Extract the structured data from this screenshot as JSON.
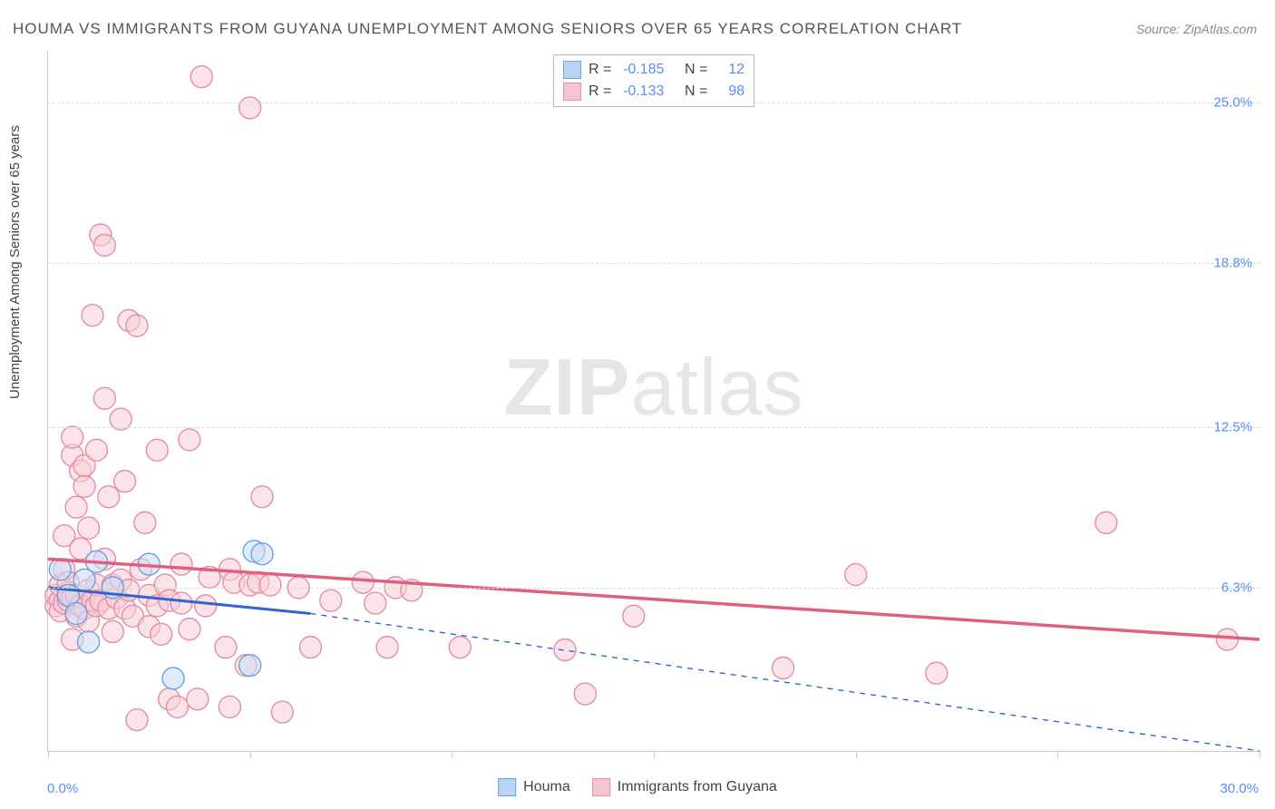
{
  "title": "HOUMA VS IMMIGRANTS FROM GUYANA UNEMPLOYMENT AMONG SENIORS OVER 65 YEARS CORRELATION CHART",
  "source": "Source: ZipAtlas.com",
  "ylabel": "Unemployment Among Seniors over 65 years",
  "watermark_a": "ZIP",
  "watermark_b": "atlas",
  "chart": {
    "type": "scatter",
    "xlim": [
      0,
      30
    ],
    "ylim": [
      0,
      27
    ],
    "x_axis_labels": {
      "left": "0.0%",
      "right": "30.0%"
    },
    "y_ticks": [
      {
        "value": 6.3,
        "label": "6.3%"
      },
      {
        "value": 12.5,
        "label": "12.5%"
      },
      {
        "value": 18.8,
        "label": "18.8%"
      },
      {
        "value": 25.0,
        "label": "25.0%"
      }
    ],
    "x_tick_positions": [
      0,
      5,
      10,
      15,
      20,
      25,
      30
    ],
    "grid_color": "#dddddd",
    "axis_color": "#cccccc",
    "background_color": "#ffffff",
    "marker_radius": 12,
    "marker_stroke_width": 1.4,
    "label_fontsize": 15,
    "tick_color": "#5b8def",
    "series": [
      {
        "name": "Houma",
        "fill": "#c9ddf6",
        "fill_opacity": 0.55,
        "stroke": "#6fa0e0",
        "swatch_fill": "#b9d4f2",
        "swatch_border": "#6fa0e0",
        "R": "-0.185",
        "N": "12",
        "trend": {
          "x1": 0,
          "y1": 6.3,
          "x2": 6.5,
          "y2": 5.3,
          "dash_x2": 30,
          "dash_y2": 0.0,
          "color": "#3366cc",
          "width": 3,
          "dash_width": 1.4
        },
        "points": [
          [
            0.3,
            7.0
          ],
          [
            0.5,
            6.0
          ],
          [
            0.7,
            5.3
          ],
          [
            0.9,
            6.6
          ],
          [
            1.0,
            4.2
          ],
          [
            1.2,
            7.3
          ],
          [
            1.6,
            6.3
          ],
          [
            2.5,
            7.2
          ],
          [
            3.1,
            2.8
          ],
          [
            5.0,
            3.3
          ],
          [
            5.1,
            7.7
          ],
          [
            5.3,
            7.6
          ]
        ]
      },
      {
        "name": "Immigrants from Guyana",
        "fill": "#f8cdd7",
        "fill_opacity": 0.55,
        "stroke": "#e38fa5",
        "swatch_fill": "#f6c5d1",
        "swatch_border": "#e38fa5",
        "R": "-0.133",
        "N": "98",
        "trend": {
          "x1": 0,
          "y1": 7.4,
          "x2": 30,
          "y2": 4.3,
          "color": "#e0607f",
          "width": 3.5
        },
        "points": [
          [
            0.2,
            5.6
          ],
          [
            0.2,
            6.0
          ],
          [
            0.3,
            5.8
          ],
          [
            0.3,
            6.4
          ],
          [
            0.3,
            5.4
          ],
          [
            0.4,
            7.0
          ],
          [
            0.4,
            5.7
          ],
          [
            0.4,
            8.3
          ],
          [
            0.5,
            5.8
          ],
          [
            0.5,
            6.1
          ],
          [
            0.5,
            6.5
          ],
          [
            0.6,
            5.9
          ],
          [
            0.6,
            4.3
          ],
          [
            0.6,
            11.4
          ],
          [
            0.6,
            12.1
          ],
          [
            0.7,
            5.2
          ],
          [
            0.7,
            9.4
          ],
          [
            0.7,
            6.0
          ],
          [
            0.8,
            10.8
          ],
          [
            0.8,
            5.6
          ],
          [
            0.8,
            7.8
          ],
          [
            0.9,
            5.5
          ],
          [
            0.9,
            11.0
          ],
          [
            0.9,
            10.2
          ],
          [
            1.0,
            6.2
          ],
          [
            1.0,
            5.0
          ],
          [
            1.0,
            8.6
          ],
          [
            1.1,
            5.8
          ],
          [
            1.1,
            16.8
          ],
          [
            1.2,
            11.6
          ],
          [
            1.2,
            5.6
          ],
          [
            1.2,
            6.4
          ],
          [
            1.3,
            19.9
          ],
          [
            1.3,
            5.8
          ],
          [
            1.4,
            7.4
          ],
          [
            1.4,
            13.6
          ],
          [
            1.4,
            19.5
          ],
          [
            1.5,
            5.5
          ],
          [
            1.5,
            9.8
          ],
          [
            1.6,
            6.4
          ],
          [
            1.6,
            4.6
          ],
          [
            1.7,
            5.9
          ],
          [
            1.8,
            6.6
          ],
          [
            1.8,
            12.8
          ],
          [
            1.9,
            5.5
          ],
          [
            1.9,
            10.4
          ],
          [
            2.0,
            16.6
          ],
          [
            2.0,
            6.2
          ],
          [
            2.1,
            5.2
          ],
          [
            2.2,
            16.4
          ],
          [
            2.2,
            1.2
          ],
          [
            2.3,
            7.0
          ],
          [
            2.4,
            8.8
          ],
          [
            2.5,
            4.8
          ],
          [
            2.5,
            6.0
          ],
          [
            2.7,
            5.6
          ],
          [
            2.7,
            11.6
          ],
          [
            2.8,
            4.5
          ],
          [
            2.9,
            6.4
          ],
          [
            3.0,
            5.8
          ],
          [
            3.0,
            2.0
          ],
          [
            3.2,
            1.7
          ],
          [
            3.3,
            5.7
          ],
          [
            3.3,
            7.2
          ],
          [
            3.5,
            4.7
          ],
          [
            3.5,
            12.0
          ],
          [
            3.7,
            2.0
          ],
          [
            3.8,
            26.0
          ],
          [
            3.9,
            5.6
          ],
          [
            4.0,
            6.7
          ],
          [
            4.4,
            4.0
          ],
          [
            4.5,
            7.0
          ],
          [
            4.5,
            1.7
          ],
          [
            4.6,
            6.5
          ],
          [
            4.9,
            3.3
          ],
          [
            5.0,
            24.8
          ],
          [
            5.0,
            6.4
          ],
          [
            5.2,
            6.5
          ],
          [
            5.3,
            9.8
          ],
          [
            5.5,
            6.4
          ],
          [
            5.8,
            1.5
          ],
          [
            6.2,
            6.3
          ],
          [
            6.5,
            4.0
          ],
          [
            7.0,
            5.8
          ],
          [
            7.8,
            6.5
          ],
          [
            8.1,
            5.7
          ],
          [
            8.4,
            4.0
          ],
          [
            8.6,
            6.3
          ],
          [
            9.0,
            6.2
          ],
          [
            10.2,
            4.0
          ],
          [
            12.8,
            3.9
          ],
          [
            13.3,
            2.2
          ],
          [
            14.5,
            5.2
          ],
          [
            18.2,
            3.2
          ],
          [
            20.0,
            6.8
          ],
          [
            22.0,
            3.0
          ],
          [
            26.2,
            8.8
          ],
          [
            29.2,
            4.3
          ]
        ]
      }
    ]
  },
  "legend_bottom": [
    {
      "label": "Houma",
      "series_idx": 0
    },
    {
      "label": "Immigrants from Guyana",
      "series_idx": 1
    }
  ]
}
